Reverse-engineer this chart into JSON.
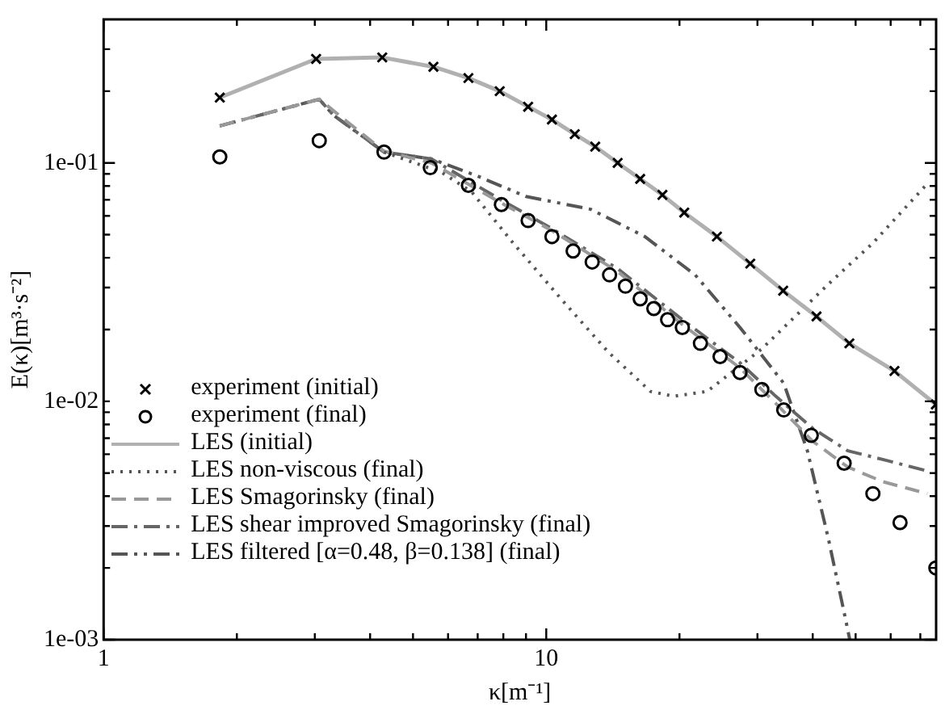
{
  "chart_data": {
    "type": "line",
    "xlabel": "κ[m⁻¹]",
    "ylabel": "E(κ)[m³·s⁻²]",
    "log": "xy",
    "grid": false,
    "legend": "bottom left",
    "xlim": [
      1,
      76
    ],
    "xticks": [
      1,
      {
        "value": 2,
        "label": null
      },
      {
        "value": 3,
        "label": null
      },
      {
        "value": 4,
        "label": null
      },
      {
        "value": 5,
        "label": null
      },
      {
        "value": 6,
        "label": null
      },
      {
        "value": 7,
        "label": null
      },
      {
        "value": 8,
        "label": null
      },
      {
        "value": 9,
        "label": null
      },
      10,
      {
        "value": 20,
        "label": null
      },
      {
        "value": 30,
        "label": null
      },
      {
        "value": 40,
        "label": null
      },
      {
        "value": 50,
        "label": null
      },
      {
        "value": 60,
        "label": null
      },
      {
        "value": 70,
        "label": null
      }
    ],
    "ylim": [
      0.001,
      0.4
    ],
    "yticks": [
      {
        "value": 0.001,
        "label": "1e-03"
      },
      {
        "value": 0.002,
        "label": null
      },
      {
        "value": 0.003,
        "label": null
      },
      {
        "value": 0.004,
        "label": null
      },
      {
        "value": 0.005,
        "label": null
      },
      {
        "value": 0.006,
        "label": null
      },
      {
        "value": 0.007,
        "label": null
      },
      {
        "value": 0.008,
        "label": null
      },
      {
        "value": 0.009,
        "label": null
      },
      {
        "value": 0.01,
        "label": "1e-02"
      },
      {
        "value": 0.02,
        "label": null
      },
      {
        "value": 0.03,
        "label": null
      },
      {
        "value": 0.04,
        "label": null
      },
      {
        "value": 0.05,
        "label": null
      },
      {
        "value": 0.06,
        "label": null
      },
      {
        "value": 0.07,
        "label": null
      },
      {
        "value": 0.08,
        "label": null
      },
      {
        "value": 0.09,
        "label": null
      },
      {
        "value": 0.1,
        "label": "1e-01"
      },
      {
        "value": 0.2,
        "label": null
      },
      {
        "value": 0.3,
        "label": null
      }
    ],
    "series": [
      {
        "name": "experiment (initial)",
        "type": "scatter",
        "marker": "cross",
        "color": "#000000",
        "x": [
          1.83,
          3.02,
          4.26,
          5.56,
          6.67,
          7.85,
          9.1,
          10.3,
          11.6,
          12.9,
          14.5,
          16.3,
          18.3,
          20.5,
          24.3,
          28.9,
          34.3,
          40.8,
          48.4,
          61.2,
          75.9
        ],
        "values": [
          0.188,
          0.273,
          0.277,
          0.253,
          0.227,
          0.2,
          0.172,
          0.152,
          0.132,
          0.117,
          0.1,
          0.0857,
          0.0734,
          0.0619,
          0.0491,
          0.0378,
          0.0291,
          0.0227,
          0.0175,
          0.0134,
          0.0097
        ]
      },
      {
        "name": "experiment (final)",
        "type": "scatter",
        "marker": "circle",
        "color": "#000000",
        "x": [
          1.83,
          3.07,
          4.3,
          5.47,
          6.67,
          7.92,
          9.1,
          10.3,
          11.5,
          12.7,
          13.9,
          15.1,
          16.3,
          17.5,
          18.8,
          20.3,
          22.3,
          24.7,
          27.4,
          30.7,
          34.4,
          39.7,
          47.1,
          54.7,
          63.0,
          75.9
        ],
        "values": [
          0.106,
          0.124,
          0.111,
          0.0955,
          0.0805,
          0.0669,
          0.0573,
          0.0491,
          0.0427,
          0.0384,
          0.0339,
          0.0304,
          0.0269,
          0.0245,
          0.022,
          0.0204,
          0.0175,
          0.0154,
          0.0132,
          0.0112,
          0.0092,
          0.0072,
          0.0055,
          0.0041,
          0.0031,
          0.002
        ]
      },
      {
        "name": "LES (initial)",
        "type": "line",
        "line_style": "solid",
        "color": "#b0b0b0",
        "x": [
          1.83,
          3.02,
          4.26,
          5.56,
          6.67,
          7.85,
          9.1,
          10.3,
          11.6,
          12.9,
          14.5,
          16.3,
          18.3,
          20.5,
          24.3,
          28.9,
          34.3,
          40.8,
          48.4,
          61.2,
          75.9
        ],
        "values": [
          0.188,
          0.273,
          0.277,
          0.253,
          0.227,
          0.2,
          0.172,
          0.152,
          0.132,
          0.117,
          0.1,
          0.0857,
          0.0734,
          0.0619,
          0.0491,
          0.0378,
          0.0291,
          0.0227,
          0.0175,
          0.0134,
          0.0097
        ]
      },
      {
        "name": "LES non-viscous (final)",
        "type": "line",
        "line_style": "dotted",
        "color": "#555555",
        "x": [
          4.3,
          5.81,
          6.78,
          8.42,
          10.8,
          13.8,
          17.2,
          19.4,
          23.1,
          30.7,
          43.3,
          54.7,
          72.6
        ],
        "values": [
          0.111,
          0.0912,
          0.0757,
          0.0461,
          0.0269,
          0.0161,
          0.011,
          0.0105,
          0.011,
          0.0166,
          0.0309,
          0.0461,
          0.0818
        ]
      },
      {
        "name": "LES Smagorinsky (final)",
        "type": "line",
        "line_style": "dashed",
        "color": "#999999",
        "x": [
          1.83,
          3.07,
          4.3,
          5.5,
          7.9,
          10.3,
          14.5,
          20.3,
          27.4,
          33,
          40,
          48,
          57.6,
          72.6
        ],
        "values": [
          0.143,
          0.185,
          0.112,
          0.1,
          0.068,
          0.052,
          0.035,
          0.021,
          0.0138,
          0.0098,
          0.0068,
          0.0053,
          0.0046,
          0.0041
        ]
      },
      {
        "name": "LES shear improved Smagorinsky (final)",
        "type": "line",
        "line_style": "dashdot",
        "color": "#666666",
        "x": [
          1.83,
          3.07,
          3.3,
          4.3,
          5.5,
          7.9,
          10.3,
          14.5,
          20.3,
          27.4,
          33,
          40,
          48,
          57.6,
          72.6
        ],
        "values": [
          0.143,
          0.185,
          0.159,
          0.111,
          0.104,
          0.07,
          0.053,
          0.036,
          0.022,
          0.0145,
          0.0105,
          0.0077,
          0.0062,
          0.0057,
          0.0051
        ]
      },
      {
        "name": "LES filtered [α=0.48, β=0.138] (final)",
        "type": "line",
        "line_style": "dashdotdot",
        "color": "#555555",
        "x": [
          1.83,
          3.07,
          3.3,
          4.3,
          5.5,
          7,
          9,
          12.6,
          16.7,
          21.7,
          27.4,
          34.4,
          38.9,
          43.3,
          47.1,
          48.5
        ],
        "values": [
          0.143,
          0.185,
          0.159,
          0.111,
          0.104,
          0.088,
          0.0723,
          0.0639,
          0.0491,
          0.0339,
          0.0204,
          0.0119,
          0.0062,
          0.0027,
          0.0013,
          0.001
        ]
      }
    ]
  }
}
